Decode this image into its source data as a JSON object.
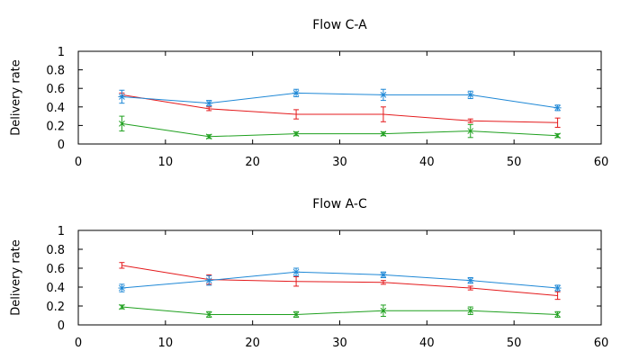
{
  "chart_data": [
    {
      "type": "line",
      "title": "Flow C-A",
      "xlabel": "",
      "ylabel": "Delivery rate",
      "xlim": [
        0,
        60
      ],
      "ylim": [
        0,
        1
      ],
      "xticks": [
        0,
        10,
        20,
        30,
        40,
        50,
        60
      ],
      "yticks": [
        0,
        0.2,
        0.4,
        0.6,
        0.8,
        1
      ],
      "xtick_labels": [
        "0",
        "10",
        "20",
        "30",
        "40",
        "50",
        "60"
      ],
      "ytick_labels": [
        "0",
        "0.2",
        "0.4",
        "0.6",
        "0.8",
        "1"
      ],
      "grid": false,
      "legend": "none",
      "x": [
        5,
        15,
        25,
        35,
        45,
        55
      ],
      "series": [
        {
          "color": "#e41a1c",
          "marker": "errorbar",
          "values": [
            0.53,
            0.38,
            0.32,
            0.32,
            0.25,
            0.23
          ],
          "errors": [
            0.02,
            0.02,
            0.05,
            0.08,
            0.02,
            0.05
          ]
        },
        {
          "color": "#1f88d6",
          "marker": "star",
          "values": [
            0.51,
            0.44,
            0.55,
            0.53,
            0.53,
            0.39
          ],
          "errors": [
            0.07,
            0.03,
            0.04,
            0.06,
            0.04,
            0.03
          ]
        },
        {
          "color": "#1fa01f",
          "marker": "cross",
          "values": [
            0.22,
            0.08,
            0.11,
            0.11,
            0.14,
            0.09
          ],
          "errors": [
            0.08,
            0.02,
            0.02,
            0.02,
            0.07,
            0.02
          ]
        }
      ]
    },
    {
      "type": "line",
      "title": "Flow A-C",
      "xlabel": "",
      "ylabel": "Delivery rate",
      "xlim": [
        0,
        60
      ],
      "ylim": [
        0,
        1
      ],
      "xticks": [
        0,
        10,
        20,
        30,
        40,
        50,
        60
      ],
      "yticks": [
        0,
        0.2,
        0.4,
        0.6,
        0.8,
        1
      ],
      "xtick_labels": [
        "0",
        "10",
        "20",
        "30",
        "40",
        "50",
        "60"
      ],
      "ytick_labels": [
        "0",
        "0.2",
        "0.4",
        "0.6",
        "0.8",
        "1"
      ],
      "grid": false,
      "legend": "none",
      "x": [
        5,
        15,
        25,
        35,
        45,
        55
      ],
      "series": [
        {
          "color": "#e41a1c",
          "marker": "errorbar",
          "values": [
            0.63,
            0.48,
            0.46,
            0.45,
            0.39,
            0.31
          ],
          "errors": [
            0.03,
            0.05,
            0.05,
            0.02,
            0.02,
            0.04
          ]
        },
        {
          "color": "#1f88d6",
          "marker": "star",
          "values": [
            0.39,
            0.47,
            0.56,
            0.53,
            0.47,
            0.39
          ],
          "errors": [
            0.04,
            0.05,
            0.04,
            0.03,
            0.03,
            0.03
          ]
        },
        {
          "color": "#1fa01f",
          "marker": "cross",
          "values": [
            0.19,
            0.11,
            0.11,
            0.15,
            0.15,
            0.11
          ],
          "errors": [
            0.02,
            0.03,
            0.03,
            0.06,
            0.04,
            0.03
          ]
        }
      ]
    }
  ]
}
